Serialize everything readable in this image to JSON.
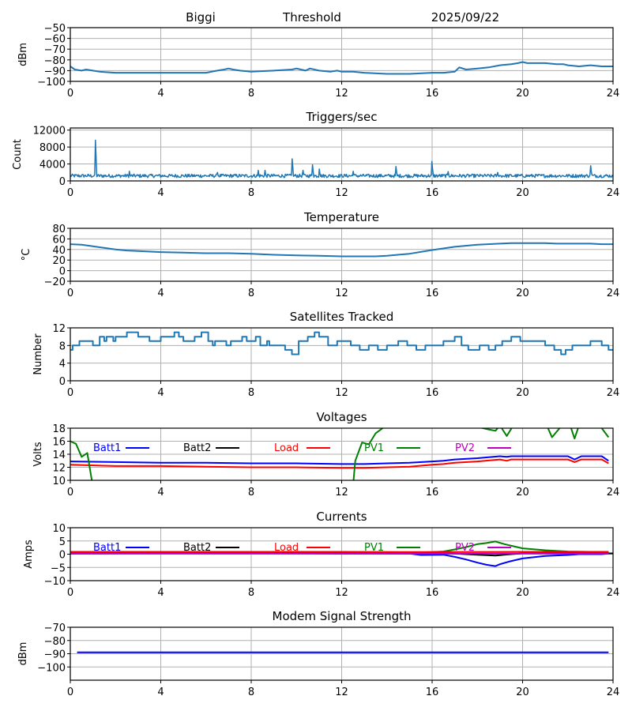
{
  "header": {
    "station": "Biggi",
    "mode": "Threshold",
    "date": "2025/09/22"
  },
  "chart_data": [
    {
      "id": "threshold",
      "type": "line",
      "title": "",
      "xlabel": "",
      "ylabel": "dBm",
      "xlim": [
        0,
        24
      ],
      "ylim": [
        -100,
        -50
      ],
      "xticks": [
        0,
        4,
        8,
        12,
        16,
        20,
        24
      ],
      "yticks": [
        -100,
        -90,
        -80,
        -70,
        -60,
        -50
      ],
      "ytick_labels": [
        "−100",
        "−90",
        "−80",
        "−70",
        "−60",
        "−50"
      ],
      "grid": true,
      "series": [
        {
          "name": "Threshold",
          "color": "#1f77b4",
          "x": [
            0,
            0.2,
            0.5,
            0.7,
            1.0,
            1.3,
            2,
            3,
            4,
            5,
            6,
            6.5,
            6.8,
            7.0,
            7.2,
            7.5,
            8,
            9,
            9.8,
            10,
            10.2,
            10.4,
            10.6,
            11,
            11.5,
            11.8,
            12,
            12.5,
            13,
            14,
            15,
            16,
            16.5,
            17,
            17.2,
            17.5,
            18,
            18.5,
            19,
            19.5,
            19.8,
            20,
            20.2,
            21,
            21.5,
            21.8,
            22,
            22.5,
            23,
            23.5,
            23.8,
            24
          ],
          "y": [
            -86,
            -89,
            -90,
            -89,
            -90,
            -91,
            -92,
            -92,
            -92,
            -92,
            -92,
            -90,
            -89,
            -88,
            -89,
            -90,
            -91,
            -90,
            -89,
            -88,
            -89,
            -90,
            -88,
            -90,
            -91,
            -90,
            -91,
            -91,
            -92,
            -93,
            -93,
            -92,
            -92,
            -91,
            -87,
            -89,
            -88,
            -87,
            -85,
            -84,
            -83,
            -82,
            -83,
            -83,
            -84,
            -84,
            -85,
            -86,
            -85,
            -86,
            -86,
            -86
          ]
        }
      ]
    },
    {
      "id": "triggers",
      "type": "line",
      "title": "Triggers/sec",
      "xlabel": "",
      "ylabel": "Count",
      "xlim": [
        0,
        24
      ],
      "ylim": [
        0,
        12500
      ],
      "xticks": [
        0,
        4,
        8,
        12,
        16,
        20,
        24
      ],
      "yticks": [
        0,
        4000,
        8000,
        12000
      ],
      "ytick_labels": [
        "0",
        "4000",
        "8000",
        "12000"
      ],
      "grid": true,
      "series": [
        {
          "name": "Triggers",
          "color": "#1f77b4",
          "baseline": 1200,
          "noise": 500,
          "spikes": [
            [
              1.1,
              9600
            ],
            [
              2.6,
              2300
            ],
            [
              6.5,
              2000
            ],
            [
              8.3,
              2500
            ],
            [
              8.6,
              2500
            ],
            [
              9.8,
              5200
            ],
            [
              10.3,
              2500
            ],
            [
              10.7,
              3800
            ],
            [
              11.0,
              2800
            ],
            [
              12.5,
              2300
            ],
            [
              14.4,
              3400
            ],
            [
              16.0,
              4600
            ],
            [
              16.7,
              2200
            ],
            [
              18.9,
              2000
            ],
            [
              23.0,
              3600
            ]
          ]
        }
      ]
    },
    {
      "id": "temperature",
      "type": "line",
      "title": "Temperature",
      "xlabel": "",
      "ylabel": "°C",
      "xlim": [
        0,
        24
      ],
      "ylim": [
        -20,
        80
      ],
      "xticks": [
        0,
        4,
        8,
        12,
        16,
        20,
        24
      ],
      "yticks": [
        -20,
        0,
        20,
        40,
        60,
        80
      ],
      "ytick_labels": [
        "−20",
        "0",
        "20",
        "40",
        "60",
        "80"
      ],
      "grid": true,
      "series": [
        {
          "name": "Temperature",
          "color": "#1f77b4",
          "x": [
            0,
            0.5,
            1,
            1.5,
            2,
            2.5,
            3,
            4,
            5,
            6,
            7,
            8,
            9,
            10,
            11,
            12,
            13,
            13.5,
            14,
            15,
            16,
            17,
            18,
            19,
            19.5,
            20,
            21,
            21.5,
            22,
            23,
            23.5,
            24
          ],
          "y": [
            50,
            49,
            46,
            43,
            40,
            38,
            37,
            35,
            34,
            33,
            33,
            32,
            30,
            29,
            28,
            27,
            27,
            27,
            28,
            32,
            39,
            45,
            49,
            51,
            52,
            52,
            52,
            51,
            51,
            51,
            50,
            50
          ]
        }
      ]
    },
    {
      "id": "satellites",
      "type": "line",
      "title": "Satellites Tracked",
      "xlabel": "",
      "ylabel": "Number",
      "xlim": [
        0,
        24
      ],
      "ylim": [
        0,
        12
      ],
      "xticks": [
        0,
        4,
        8,
        12,
        16,
        20,
        24
      ],
      "yticks": [
        0,
        4,
        8,
        12
      ],
      "ytick_labels": [
        "0",
        "4",
        "8",
        "12"
      ],
      "grid": true,
      "series": [
        {
          "name": "Satellites",
          "color": "#1f77b4",
          "step": true,
          "x": [
            0,
            0.1,
            0.4,
            1.0,
            1.3,
            1.5,
            1.6,
            1.9,
            2.0,
            2.5,
            3.0,
            3.5,
            4.0,
            4.6,
            4.8,
            5.0,
            5.5,
            5.8,
            6.1,
            6.3,
            6.4,
            6.9,
            7.1,
            7.6,
            7.8,
            8.2,
            8.4,
            8.7,
            8.8,
            9.2,
            9.5,
            9.8,
            10.1,
            10.5,
            10.8,
            11.0,
            11.4,
            11.8,
            12.0,
            12.4,
            12.8,
            13.2,
            13.6,
            14.0,
            14.5,
            14.9,
            15.3,
            15.7,
            16.0,
            16.5,
            16.8,
            17.0,
            17.3,
            17.6,
            18.1,
            18.5,
            18.8,
            19.1,
            19.5,
            19.9,
            20.1,
            21.0,
            21.4,
            21.7,
            21.9,
            22.2,
            22.5,
            23.0,
            23.5,
            23.8,
            24.0
          ],
          "y": [
            7,
            8,
            9,
            8,
            10,
            9,
            10,
            9,
            10,
            11,
            10,
            9,
            10,
            11,
            10,
            9,
            10,
            11,
            9,
            8,
            9,
            8,
            9,
            10,
            9,
            10,
            8,
            9,
            8,
            8,
            7,
            6,
            9,
            10,
            11,
            10,
            8,
            9,
            9,
            8,
            7,
            8,
            7,
            8,
            9,
            8,
            7,
            8,
            8,
            9,
            9,
            10,
            8,
            7,
            8,
            7,
            8,
            9,
            10,
            9,
            9,
            8,
            7,
            6,
            7,
            8,
            8,
            9,
            8,
            7,
            7
          ]
        }
      ]
    },
    {
      "id": "voltages",
      "type": "line",
      "title": "Voltages",
      "xlabel": "",
      "ylabel": "Volts",
      "xlim": [
        0,
        24
      ],
      "ylim": [
        10,
        18
      ],
      "xticks": [
        0,
        4,
        8,
        12,
        16,
        20,
        24
      ],
      "yticks": [
        10,
        12,
        14,
        16,
        18
      ],
      "ytick_labels": [
        "10",
        "12",
        "14",
        "16",
        "18"
      ],
      "grid": true,
      "legend": {
        "placement": "top",
        "entries": [
          {
            "name": "Batt1",
            "color": "#0000ff"
          },
          {
            "name": "Batt2",
            "color": "#000000"
          },
          {
            "name": "Load",
            "color": "#ff0000"
          },
          {
            "name": "PV1",
            "color": "#008000"
          },
          {
            "name": "PV2",
            "color": "#bf00bf"
          }
        ]
      },
      "series": [
        {
          "name": "Batt1",
          "color": "#0000ff",
          "x": [
            0,
            2,
            4,
            6,
            8,
            10,
            12,
            13,
            14,
            15,
            16,
            16.5,
            17,
            18,
            18.7,
            19,
            19.3,
            19.5,
            20,
            21,
            22,
            22.3,
            22.6,
            23,
            23.5,
            23.8
          ],
          "y": [
            12.9,
            12.8,
            12.7,
            12.7,
            12.6,
            12.6,
            12.5,
            12.5,
            12.6,
            12.7,
            12.9,
            13.0,
            13.2,
            13.4,
            13.6,
            13.7,
            13.6,
            13.7,
            13.7,
            13.7,
            13.7,
            13.2,
            13.7,
            13.7,
            13.7,
            13.0
          ]
        },
        {
          "name": "Load",
          "color": "#ff0000",
          "x": [
            0,
            2,
            4,
            6,
            8,
            10,
            12,
            13,
            14,
            15,
            16,
            16.5,
            17,
            18,
            18.7,
            19,
            19.3,
            19.5,
            20,
            21,
            22,
            22.3,
            22.6,
            23,
            23.5,
            23.8
          ],
          "y": [
            12.4,
            12.2,
            12.2,
            12.1,
            12.0,
            12.0,
            11.9,
            11.9,
            12.0,
            12.1,
            12.4,
            12.5,
            12.7,
            12.9,
            13.1,
            13.2,
            13.0,
            13.2,
            13.2,
            13.2,
            13.2,
            12.8,
            13.2,
            13.2,
            13.2,
            12.6
          ]
        },
        {
          "name": "PV1",
          "color": "#008000",
          "x": [
            0,
            0.25,
            0.5,
            0.75,
            1.0,
            12.5,
            12.6,
            12.9,
            13.2,
            13.5,
            14,
            16,
            18,
            18.5,
            18.8,
            19.0,
            19.3,
            19.6,
            20,
            20.5,
            21.0,
            21.3,
            22,
            22.3,
            22.6,
            23,
            23.5,
            23.8
          ],
          "y": [
            16,
            15.6,
            13.6,
            14.2,
            9.0,
            9.0,
            13.0,
            15.8,
            15.5,
            17.2,
            18.5,
            19,
            18.2,
            17.8,
            17.6,
            18.4,
            16.8,
            18.5,
            19.5,
            19.5,
            19.0,
            16.6,
            19.5,
            16.4,
            19.5,
            19.5,
            18.0,
            16.6
          ]
        },
        {
          "name": "Batt2",
          "color": "#000000",
          "x": [],
          "y": []
        },
        {
          "name": "PV2",
          "color": "#bf00bf",
          "x": [],
          "y": []
        }
      ]
    },
    {
      "id": "currents",
      "type": "line",
      "title": "Currents",
      "xlabel": "",
      "ylabel": "Amps",
      "xlim": [
        0,
        24
      ],
      "ylim": [
        -10,
        10
      ],
      "xticks": [
        0,
        4,
        8,
        12,
        16,
        20,
        24
      ],
      "yticks": [
        -10,
        -5,
        0,
        5,
        10
      ],
      "ytick_labels": [
        "−10",
        "−5",
        "0",
        "5",
        "10"
      ],
      "grid": true,
      "legend": {
        "placement": "top",
        "entries": [
          {
            "name": "Batt1",
            "color": "#0000ff"
          },
          {
            "name": "Batt2",
            "color": "#000000"
          },
          {
            "name": "Load",
            "color": "#ff0000"
          },
          {
            "name": "PV1",
            "color": "#008000"
          },
          {
            "name": "PV2",
            "color": "#bf00bf"
          }
        ]
      },
      "series": [
        {
          "name": "PV1",
          "color": "#008000",
          "x": [
            0,
            4,
            8,
            12,
            15,
            16,
            16.5,
            17,
            17.5,
            18,
            18.4,
            18.8,
            19.2,
            19.6,
            20,
            21,
            22,
            23,
            23.8
          ],
          "y": [
            0.4,
            0.4,
            0.4,
            0.4,
            0.6,
            0.8,
            1.0,
            1.8,
            2.7,
            3.8,
            4.2,
            4.8,
            3.8,
            3.0,
            2.2,
            1.5,
            1.0,
            0.9,
            0.8
          ]
        },
        {
          "name": "Batt2",
          "color": "#000000",
          "x": [
            0,
            4,
            8,
            12,
            16,
            17,
            18,
            18.8,
            19.5,
            20,
            24
          ],
          "y": [
            0.2,
            0.4,
            0.4,
            0.2,
            0.3,
            0.2,
            -0.2,
            -0.5,
            0.0,
            0.3,
            0.3
          ]
        },
        {
          "name": "Load",
          "color": "#ff0000",
          "x": [
            0,
            4,
            8,
            12,
            16,
            20,
            23.8
          ],
          "y": [
            0.9,
            0.9,
            0.9,
            0.9,
            0.8,
            0.9,
            0.9
          ]
        },
        {
          "name": "Batt1",
          "color": "#0000ff",
          "x": [
            0,
            4,
            8,
            12,
            15,
            15.5,
            16.5,
            17,
            17.5,
            18,
            18.4,
            18.8,
            19.0,
            19.4,
            20,
            21,
            22,
            22.5,
            23.5,
            23.8
          ],
          "y": [
            0.3,
            0.4,
            0.4,
            0.4,
            0.2,
            -0.3,
            -0.2,
            -1.0,
            -2.0,
            -3.2,
            -4.0,
            -4.5,
            -3.8,
            -2.8,
            -1.6,
            -0.7,
            -0.3,
            0.0,
            0.0,
            0.2
          ]
        },
        {
          "name": "PV2",
          "color": "#bf00bf",
          "x": [
            0,
            4,
            8,
            12,
            16,
            20,
            23.8
          ],
          "y": [
            0.2,
            0.2,
            0.2,
            0.2,
            0.2,
            0.2,
            0.2
          ]
        }
      ]
    },
    {
      "id": "modem",
      "type": "line",
      "title": "Modem Signal Strength",
      "xlabel": "",
      "ylabel": "dBm",
      "xlim": [
        0,
        24
      ],
      "ylim": [
        -110,
        -70
      ],
      "xticks": [
        0,
        4,
        8,
        12,
        16,
        20,
        24
      ],
      "yticks": [
        -100,
        -90,
        -80,
        -70
      ],
      "ytick_labels": [
        "−100",
        "−90",
        "−80",
        "−70"
      ],
      "grid": true,
      "series": [
        {
          "name": "Modem",
          "color": "#0000ff",
          "x": [
            0.3,
            23.8
          ],
          "y": [
            -89,
            -89
          ]
        }
      ]
    }
  ]
}
